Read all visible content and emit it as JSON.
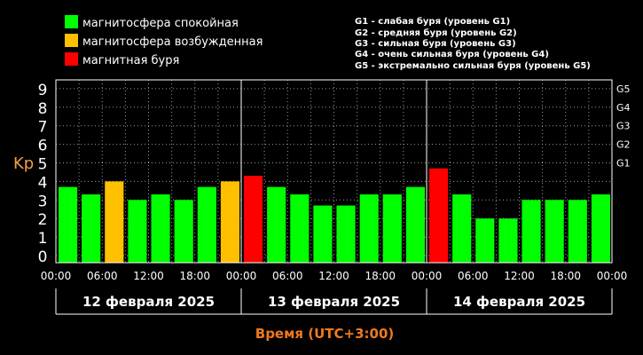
{
  "legend": {
    "items": [
      {
        "label": "магнитосфера спокойная",
        "color": "#00ff00"
      },
      {
        "label": "магнитосфера возбужденная",
        "color": "#ffc000"
      },
      {
        "label": "магнитная буря",
        "color": "#ff0000"
      }
    ],
    "storm_levels": [
      "G1 - слабая буря (уровень G1)",
      "G2 - средняя буря (уровень G2)",
      "G3 - сильная буря (уровень G3)",
      "G4 - очень сильная буря (уровень G4)",
      "G5 - экстремально сильная буря (уровень G5)"
    ]
  },
  "chart_data": {
    "type": "bar",
    "ylabel": "Kp",
    "xlabel": "Время (UTC+3:00)",
    "ylim": [
      0,
      9
    ],
    "y_ticks": [
      "0",
      "1",
      "2",
      "3",
      "4",
      "5",
      "6",
      "7",
      "8",
      "9"
    ],
    "right_ticks": [
      {
        "label": "G1",
        "kp": 5
      },
      {
        "label": "G2",
        "kp": 6
      },
      {
        "label": "G3",
        "kp": 7
      },
      {
        "label": "G4",
        "kp": 8
      },
      {
        "label": "G5",
        "kp": 9
      }
    ],
    "x_ticks": [
      "00:00",
      "06:00",
      "12:00",
      "18:00",
      "00:00",
      "06:00",
      "12:00",
      "18:00",
      "00:00",
      "06:00",
      "12:00",
      "18:00",
      "00:00"
    ],
    "days": [
      "12 февраля 2025",
      "13 февраля 2025",
      "14 февраля 2025"
    ],
    "grid": true,
    "values": [
      3.7,
      3.3,
      4.0,
      3.0,
      3.3,
      3.0,
      3.7,
      4.0,
      4.3,
      3.7,
      3.3,
      2.7,
      2.7,
      3.3,
      3.3,
      3.7,
      4.7,
      3.3,
      2.0,
      2.0,
      3.0,
      3.0,
      3.0,
      3.3
    ],
    "bar_colors": [
      "#00ff00",
      "#00ff00",
      "#ffc000",
      "#00ff00",
      "#00ff00",
      "#00ff00",
      "#00ff00",
      "#ffc000",
      "#ff0000",
      "#00ff00",
      "#00ff00",
      "#00ff00",
      "#00ff00",
      "#00ff00",
      "#00ff00",
      "#00ff00",
      "#ff0000",
      "#00ff00",
      "#00ff00",
      "#00ff00",
      "#00ff00",
      "#00ff00",
      "#00ff00",
      "#00ff00"
    ]
  }
}
